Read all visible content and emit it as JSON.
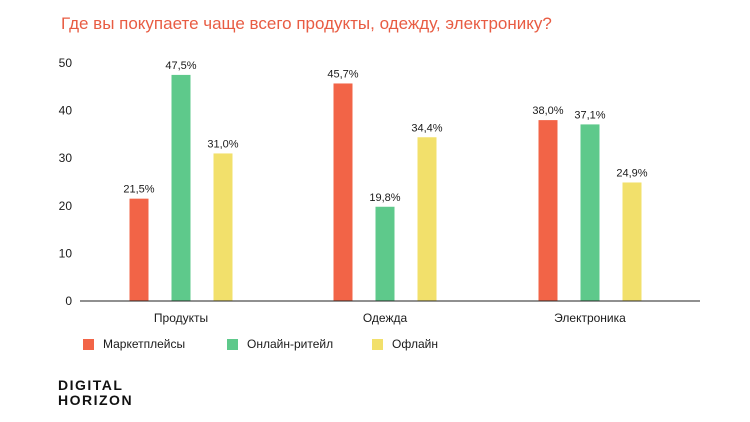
{
  "colors": {
    "title": "#e85c43",
    "series": [
      "#f26447",
      "#5ec98b",
      "#f2e06b"
    ],
    "axis": "#222222",
    "grid": "#dddddd",
    "text": "#1a1a1a"
  },
  "legend": [
    {
      "name": "Маркетплейсы",
      "color": "#f26447"
    },
    {
      "name": "Онлайн-ритейл",
      "color": "#5ec98b"
    },
    {
      "name": "Офлайн",
      "color": "#f2e06b"
    }
  ],
  "brand": {
    "line1": "DIGITAL",
    "line2": "HORIZON"
  },
  "chart_data": {
    "type": "bar",
    "title": "Где вы покупаете чаще всего продукты, одежду, электронику?",
    "categories": [
      "Продукты",
      "Одежда",
      "Электроника"
    ],
    "series": [
      {
        "name": "Маркетплейсы",
        "values": [
          21.5,
          45.7,
          38.0
        ],
        "labels": [
          "21,5%",
          "45,7%",
          "38,0%"
        ]
      },
      {
        "name": "Онлайн-ритейл",
        "values": [
          47.5,
          19.8,
          37.1
        ],
        "labels": [
          "47,5%",
          "19,8%",
          "37,1%"
        ]
      },
      {
        "name": "Офлайн",
        "values": [
          31.0,
          34.4,
          24.9
        ],
        "labels": [
          "31,0%",
          "34,4%",
          "24,9%"
        ]
      }
    ],
    "yticks": [
      0,
      10,
      20,
      30,
      40,
      50
    ],
    "ylim": [
      0,
      50
    ],
    "grid": false,
    "legend_position": "bottom-left"
  }
}
